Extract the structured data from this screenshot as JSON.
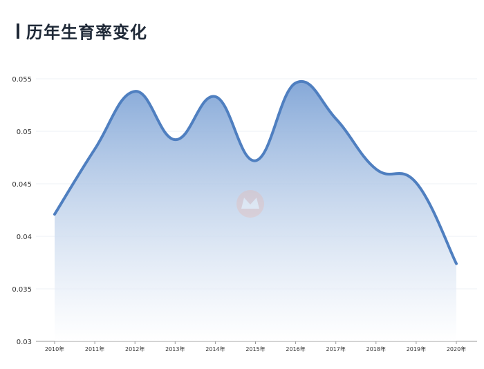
{
  "title": "历年生育率变化",
  "chart_data": {
    "type": "area",
    "title": "历年生育率变化",
    "xlabel": "",
    "ylabel": "",
    "categories": [
      "2010年",
      "2011年",
      "2012年",
      "2013年",
      "2014年",
      "2015年",
      "2016年",
      "2017年",
      "2018年",
      "2019年",
      "2020年"
    ],
    "series": [
      {
        "values": [
          0.0421,
          0.0483,
          0.0538,
          0.0492,
          0.0533,
          0.0472,
          0.0546,
          0.0512,
          0.0464,
          0.0451,
          0.0374
        ]
      }
    ],
    "ylim": [
      0.03,
      0.055
    ],
    "yticks": [
      "0.03",
      "0.035",
      "0.04",
      "0.045",
      "0.05",
      "0.055"
    ],
    "grid": true,
    "colors": {
      "line": "#4f7fc0",
      "fill_top": "#7fa4d6",
      "fill_bottom": "#ffffff"
    }
  }
}
